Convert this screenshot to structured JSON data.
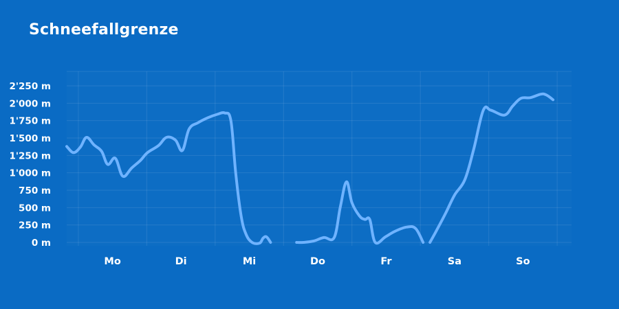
{
  "chart_data": {
    "type": "line",
    "title": "Schneefallgrenze",
    "unit": "m",
    "xlabel": "",
    "ylabel": "",
    "ylim": [
      0,
      2300
    ],
    "y_ticks": [
      0,
      250,
      500,
      750,
      1000,
      1250,
      1500,
      1750,
      2000,
      2250
    ],
    "y_tick_labels": [
      "0 m",
      "250 m",
      "500 m",
      "750 m",
      "1'000 m",
      "1'250 m",
      "1'500 m",
      "1'750 m",
      "2'000 m",
      "2'250 m"
    ],
    "x_range": [
      -0.33,
      7.05
    ],
    "day_ticks": [
      {
        "label": "Mo",
        "x": 0.34
      },
      {
        "label": "Di",
        "x": 1.34
      },
      {
        "label": "Mi",
        "x": 2.34
      },
      {
        "label": "Do",
        "x": 3.34
      },
      {
        "label": "Fr",
        "x": 4.34
      },
      {
        "label": "Sa",
        "x": 5.34
      },
      {
        "label": "So",
        "x": 6.34
      }
    ],
    "grid": true,
    "line_color": "#6fb3ff",
    "series": [
      {
        "name": "",
        "segments": [
          [
            [
              -0.33,
              1380
            ],
            [
              -0.23,
              1290
            ],
            [
              -0.13,
              1370
            ],
            [
              -0.04,
              1510
            ],
            [
              0.07,
              1400
            ],
            [
              0.18,
              1310
            ],
            [
              0.27,
              1120
            ],
            [
              0.38,
              1210
            ],
            [
              0.49,
              950
            ],
            [
              0.62,
              1070
            ],
            [
              0.75,
              1180
            ],
            [
              0.85,
              1290
            ],
            [
              1.01,
              1390
            ],
            [
              1.13,
              1510
            ],
            [
              1.26,
              1470
            ],
            [
              1.36,
              1320
            ],
            [
              1.46,
              1630
            ],
            [
              1.59,
              1720
            ],
            [
              1.73,
              1790
            ],
            [
              1.87,
              1840
            ],
            [
              1.98,
              1860
            ],
            [
              2.07,
              1750
            ],
            [
              2.14,
              1000
            ],
            [
              2.22,
              380
            ],
            [
              2.29,
              120
            ],
            [
              2.38,
              0
            ],
            [
              2.49,
              -10
            ],
            [
              2.54,
              60
            ],
            [
              2.59,
              80
            ],
            [
              2.65,
              0
            ]
          ],
          [
            [
              3.03,
              0
            ],
            [
              3.13,
              0
            ],
            [
              3.28,
              20
            ],
            [
              3.43,
              70
            ],
            [
              3.58,
              70
            ],
            [
              3.67,
              510
            ],
            [
              3.76,
              870
            ],
            [
              3.84,
              570
            ],
            [
              3.95,
              380
            ],
            [
              4.03,
              330
            ],
            [
              4.1,
              330
            ],
            [
              4.18,
              0
            ],
            [
              4.33,
              80
            ],
            [
              4.47,
              160
            ],
            [
              4.64,
              220
            ],
            [
              4.77,
              200
            ],
            [
              4.88,
              0
            ]
          ],
          [
            [
              4.98,
              0
            ],
            [
              5.07,
              160
            ],
            [
              5.21,
              420
            ],
            [
              5.34,
              680
            ],
            [
              5.49,
              900
            ],
            [
              5.62,
              1340
            ],
            [
              5.76,
              1900
            ],
            [
              5.87,
              1900
            ],
            [
              6.07,
              1830
            ],
            [
              6.19,
              1960
            ],
            [
              6.31,
              2070
            ],
            [
              6.45,
              2080
            ],
            [
              6.6,
              2130
            ],
            [
              6.68,
              2120
            ],
            [
              6.78,
              2050
            ]
          ]
        ]
      }
    ]
  }
}
